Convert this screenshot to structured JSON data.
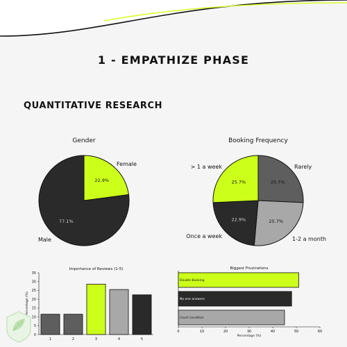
{
  "page": {
    "title": "1 - EMPATHIZE PHASE",
    "section_title": "QUANTITATIVE RESEARCH"
  },
  "colors": {
    "accent": "#ccff1a",
    "dark": "#2a2a2a",
    "mid": "#5e5e5e",
    "light": "#a8a8a8",
    "background": "#f5f5f6",
    "wave": "#d8ff2a"
  },
  "chart_data": [
    {
      "type": "pie",
      "title": "Gender",
      "slices": [
        {
          "label": "Female",
          "value": 22.9,
          "pct_label": "22.9%",
          "color": "#ccff1a"
        },
        {
          "label": "Male",
          "value": 77.1,
          "pct_label": "77.1%",
          "color": "#2a2a2a"
        }
      ]
    },
    {
      "type": "pie",
      "title": "Booking Frequency",
      "slices": [
        {
          "label": "Rarely",
          "value": 25.7,
          "pct_label": "25.7%",
          "color": "#5e5e5e"
        },
        {
          "label": "1-2 a month",
          "value": 25.7,
          "pct_label": "25.7%",
          "color": "#a8a8a8"
        },
        {
          "label": "Once a week",
          "value": 22.9,
          "pct_label": "22.9%",
          "color": "#2a2a2a"
        },
        {
          "label": "> 1 a week",
          "value": 25.7,
          "pct_label": "25.7%",
          "color": "#ccff1a"
        }
      ]
    },
    {
      "type": "bar",
      "title": "Importance of Reviews (1-5)",
      "categories": [
        "1",
        "2",
        "3",
        "4",
        "5"
      ],
      "values": [
        11.5,
        11.5,
        28.5,
        25.5,
        22.5
      ],
      "colors": [
        "#5e5e5e",
        "#5e5e5e",
        "#ccff1a",
        "#a8a8a8",
        "#2a2a2a"
      ],
      "ylabel": "Percentage (%)",
      "ylim": [
        0,
        35
      ],
      "yticks": [
        0,
        5,
        10,
        15,
        20,
        25,
        30,
        35
      ],
      "grid": false
    },
    {
      "type": "bar",
      "orientation": "horizontal",
      "title": "Biggest Frustrations",
      "categories": [
        "Double Booking",
        "No one answers",
        "Court condition"
      ],
      "values": [
        51,
        48,
        45
      ],
      "colors": [
        "#ccff1a",
        "#2a2a2a",
        "#a8a8a8"
      ],
      "xlabel": "Percentage (%)",
      "xlim": [
        0,
        60
      ],
      "xticks": [
        0,
        10,
        20,
        30,
        40,
        50,
        60
      ],
      "grid": false
    }
  ]
}
